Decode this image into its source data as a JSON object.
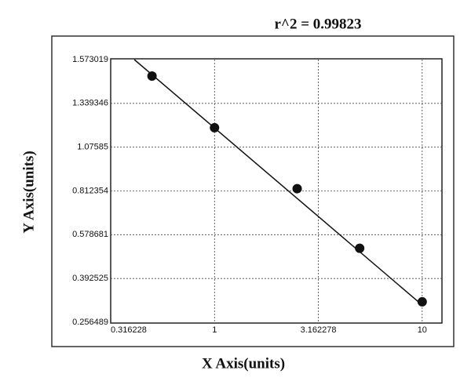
{
  "chart_data": {
    "type": "scatter",
    "title": "r^2 = 0.99823",
    "x_label": "X Axis(units)",
    "y_label": "Y Axis(units)",
    "x": [
      0.5,
      1,
      2.5,
      5,
      10
    ],
    "values": [
      1.485,
      1.193,
      0.826,
      0.521,
      0.32
    ],
    "fit_line": {
      "x": [
        0.411,
        10
      ],
      "y": [
        1.573019,
        0.31
      ]
    },
    "color": "#111111",
    "xscale": "log",
    "xlim": [
      0.316228,
      12.45
    ],
    "xticks": [
      0.316228,
      1,
      3.162278,
      10
    ],
    "ylim": [
      0.256489,
      1.573019
    ],
    "yticks": [
      0.256489,
      0.392525,
      0.578681,
      0.812354,
      1.07585,
      1.339346,
      1.573019
    ],
    "grid": true
  }
}
